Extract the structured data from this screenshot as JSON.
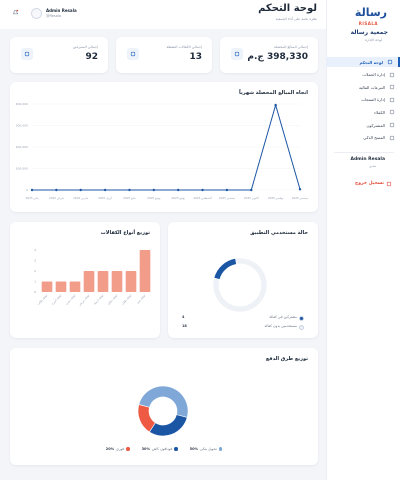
{
  "sidebar": {
    "logo": "رسالة",
    "logo_latin": "RISALA",
    "org_name": "جمعية رسالة",
    "org_sub": "لوحة الإدارة",
    "menu": [
      "لوحة التحكم",
      "إدارة الحملات",
      "التبرعات المالية",
      "إدارة المنتجات",
      "الكفلاء",
      "المشتركون",
      "المسح الذكي"
    ],
    "user_name": "Admin Resala",
    "user_role": "مدير",
    "logout": "تسجيل خروج"
  },
  "header": {
    "title": "لوحة التحكم",
    "subtitle": "نظرة عامة على أداء الجمعية",
    "user_name": "Admin Resala",
    "user_email": "@Resala"
  },
  "stats": [
    {
      "label": "إجمالي المبالغ المحصلة",
      "value": "398,330 ج.م"
    },
    {
      "label": "إجمالي الكفالات النشطة",
      "value": "13"
    },
    {
      "label": "إجمالي المتبرعين",
      "value": "92"
    }
  ],
  "chart_data": [
    {
      "type": "line",
      "title": "اتجاه المبالغ المحصلة شهرياً",
      "categories": [
        "يناير 2025",
        "فبراير 2025",
        "مارس 2025",
        "أبريل 2025",
        "مايو 2025",
        "يونيو 2025",
        "يوليو 2025",
        "أغسطس 2025",
        "سبتمبر 2025",
        "أكتوبر 2025",
        "نوفمبر 2025",
        "ديسمبر 2025"
      ],
      "values": [
        0,
        0,
        0,
        0,
        0,
        0,
        0,
        0,
        0,
        0,
        395000,
        3330
      ],
      "color": "#1b56a4",
      "ylim": [
        0,
        400000
      ],
      "yticks": [
        0,
        {
          "value": 100000,
          "label": "100,000"
        },
        {
          "value": 200000,
          "label": "200,000"
        },
        {
          "value": 300000,
          "label": "300,000"
        },
        {
          "value": 400000,
          "label": "400,000"
        }
      ],
      "grid": true
    },
    {
      "type": "bar",
      "title": "توزيع أنواع الكفالات",
      "categories": [
        "كفالة طالب",
        "كفالة أسرة",
        "كفالة مسن",
        "كفالة مريض",
        "كفالة أرملة",
        "كفالة معاق",
        "كفالة طفل",
        "كفالة يتيم"
      ],
      "values": [
        1,
        1,
        1,
        2,
        2,
        2,
        2,
        4
      ],
      "color": "#f29c8a",
      "ylim": [
        0,
        4
      ],
      "yticks": [
        0,
        1,
        2,
        3,
        4
      ],
      "grid": false
    },
    {
      "type": "pie",
      "title": "حالة مستخدمي التطبيق",
      "donut": true,
      "categories": [
        "مشتركين في كفالة",
        "مستخدمين بدون كفالة"
      ],
      "values": [
        4,
        18
      ],
      "colors": [
        "#1b56a4",
        "#eef1f6"
      ]
    },
    {
      "type": "pie",
      "title": "توزيع طرق الدفع",
      "donut": true,
      "categories": [
        "تحويل بنكي",
        "فودافون كاش",
        "فوري"
      ],
      "values": [
        50,
        30,
        20
      ],
      "value_labels": [
        "50%",
        "30%",
        "20%"
      ],
      "colors": [
        "#7fa8d8",
        "#1b56a4",
        "#ef5a45"
      ]
    }
  ]
}
